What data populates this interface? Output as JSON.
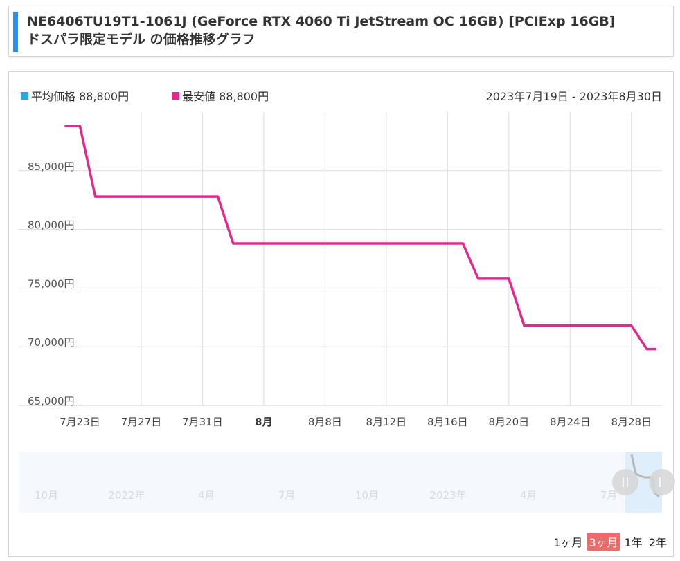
{
  "header": {
    "title_line1": "NE6406TU19T1-1061J (GeForce RTX 4060 Ti JetStream OC 16GB) [PCIExp 16GB]",
    "title_line2": "ドスパラ限定モデル の価格推移グラフ"
  },
  "legend": {
    "avg_label": "平均価格 88,800円",
    "avg_color": "#29a8e0",
    "min_label": "最安値 88,800円",
    "min_color": "#e3278f"
  },
  "date_range": "2023年7月19日 - 2023年8月30日",
  "range_buttons": [
    {
      "label": "1ヶ月",
      "active": false
    },
    {
      "label": "3ヶ月",
      "active": true
    },
    {
      "label": "1年",
      "active": false
    },
    {
      "label": "2年",
      "active": false
    }
  ],
  "navigator": {
    "labels": [
      "10月",
      "2022年",
      "4月",
      "7月",
      "10月",
      "2023年",
      "4月",
      "7月"
    ]
  },
  "chart_data": {
    "type": "line",
    "series": [
      {
        "name": "最安値",
        "color": "#e3278f",
        "x": [
          "2023-07-22",
          "2023-07-23",
          "2023-07-24",
          "2023-08-01",
          "2023-08-02",
          "2023-08-17",
          "2023-08-18",
          "2023-08-20",
          "2023-08-21",
          "2023-08-28",
          "2023-08-29",
          "2023-08-31"
        ],
        "y": [
          88800,
          88800,
          82800,
          82800,
          78800,
          78800,
          75800,
          75800,
          71800,
          71800,
          69800,
          69800
        ]
      }
    ],
    "x_ticks": [
      "7月23日",
      "7月27日",
      "7月31日",
      "8月",
      "8月8日",
      "8月12日",
      "8月16日",
      "8月20日",
      "8月24日",
      "8月28日"
    ],
    "y_ticks": [
      "65,000円",
      "70,000円",
      "75,000円",
      "80,000円",
      "85,000円"
    ],
    "ylim": [
      65000,
      90000
    ],
    "grid": true
  }
}
